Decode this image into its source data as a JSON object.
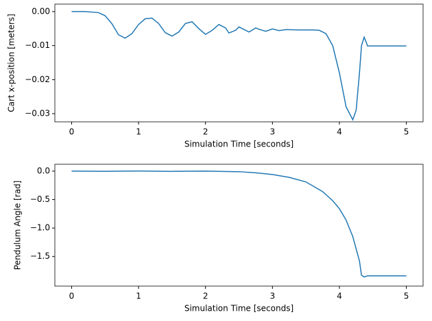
{
  "chart_data": [
    {
      "type": "line",
      "xlabel": "Simulation Time [seconds]",
      "ylabel": "Cart x-position [meters]",
      "xlim": [
        -0.25,
        5.25
      ],
      "xticks": [
        0,
        1,
        2,
        3,
        4,
        5
      ],
      "ylim": [
        -0.0324,
        0.0022
      ],
      "yticks": [
        {
          "value": 0,
          "label": "0.00"
        },
        {
          "value": -0.01,
          "label": "−0.01"
        },
        {
          "value": -0.02,
          "label": "−0.02"
        },
        {
          "value": -0.03,
          "label": "−0.03"
        }
      ],
      "x": [
        0,
        0.2,
        0.4,
        0.5,
        0.6,
        0.7,
        0.8,
        0.9,
        1.0,
        1.1,
        1.2,
        1.3,
        1.4,
        1.5,
        1.6,
        1.7,
        1.8,
        1.9,
        2.0,
        2.1,
        2.2,
        2.3,
        2.35,
        2.45,
        2.5,
        2.6,
        2.65,
        2.75,
        2.8,
        2.9,
        3.0,
        3.1,
        3.2,
        3.4,
        3.6,
        3.7,
        3.8,
        3.9,
        4.0,
        4.1,
        4.2,
        4.25,
        4.3,
        4.33,
        4.37,
        4.4,
        4.42,
        4.6,
        5.0
      ],
      "series": [
        {
          "color": "#1f77b4",
          "values": [
            0,
            0,
            -0.0003,
            -0.0012,
            -0.0035,
            -0.0068,
            -0.0078,
            -0.0065,
            -0.0038,
            -0.0021,
            -0.0019,
            -0.0035,
            -0.0062,
            -0.0072,
            -0.006,
            -0.0035,
            -0.003,
            -0.005,
            -0.0067,
            -0.0055,
            -0.0038,
            -0.0048,
            -0.0063,
            -0.0055,
            -0.0045,
            -0.0055,
            -0.006,
            -0.0048,
            -0.0052,
            -0.0058,
            -0.0051,
            -0.0056,
            -0.0053,
            -0.0054,
            -0.0054,
            -0.0055,
            -0.0065,
            -0.01,
            -0.018,
            -0.028,
            -0.0318,
            -0.029,
            -0.018,
            -0.01,
            -0.0075,
            -0.009,
            -0.0101,
            -0.0101,
            -0.0101
          ]
        }
      ]
    },
    {
      "type": "line",
      "xlabel": "Simulation Time [seconds]",
      "ylabel": "Pendulum Angle [rad]",
      "xlim": [
        -0.25,
        5.25
      ],
      "xticks": [
        0,
        1,
        2,
        3,
        4,
        5
      ],
      "ylim": [
        -2.02,
        0.12
      ],
      "yticks": [
        {
          "value": 0,
          "label": "0.0"
        },
        {
          "value": -0.5,
          "label": "−0.5"
        },
        {
          "value": -1.0,
          "label": "−1.0"
        },
        {
          "value": -1.5,
          "label": "−1.5"
        }
      ],
      "x": [
        0,
        0.5,
        1.0,
        1.5,
        2.0,
        2.5,
        2.75,
        3.0,
        3.25,
        3.5,
        3.75,
        3.9,
        4.0,
        4.1,
        4.2,
        4.3,
        4.33,
        4.37,
        4.42,
        5.0
      ],
      "series": [
        {
          "color": "#1f77b4",
          "values": [
            0,
            -0.003,
            0.002,
            -0.004,
            0,
            -0.01,
            -0.03,
            -0.06,
            -0.11,
            -0.19,
            -0.36,
            -0.52,
            -0.66,
            -0.86,
            -1.15,
            -1.58,
            -1.83,
            -1.86,
            -1.84,
            -1.84
          ]
        }
      ]
    }
  ]
}
